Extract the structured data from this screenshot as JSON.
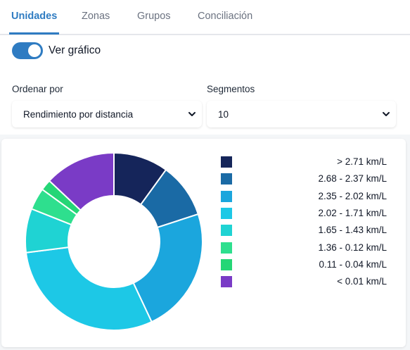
{
  "tabs": [
    {
      "label": "Unidades",
      "active": true
    },
    {
      "label": "Zonas",
      "active": false
    },
    {
      "label": "Grupos",
      "active": false
    },
    {
      "label": "Conciliación",
      "active": false
    }
  ],
  "toggle": {
    "label": "Ver gráfico",
    "checked": true
  },
  "sort": {
    "label": "Ordenar por",
    "value": "Rendimiento por distancia"
  },
  "segments": {
    "label": "Segmentos",
    "value": "10"
  },
  "colors": {
    "accent": "#2f7cc2"
  },
  "chart_data": {
    "type": "pie",
    "variant": "donut",
    "legend_position": "right",
    "categories": [
      "> 2.71 km/L",
      "2.68 - 2.37 km/L",
      "2.35 - 2.02 km/L",
      "2.02 - 1.71 km/L",
      "1.65 - 1.43 km/L",
      "1.36 - 0.12 km/L",
      "0.11 - 0.04 km/L",
      "< 0.01 km/L"
    ],
    "values": [
      10,
      10,
      23,
      30,
      8,
      4,
      2,
      13
    ],
    "colors": [
      "#15255a",
      "#1a6aa5",
      "#1ba6dd",
      "#1dc8e6",
      "#1fd3d3",
      "#2edf8e",
      "#25d676",
      "#7a3bc6"
    ]
  }
}
